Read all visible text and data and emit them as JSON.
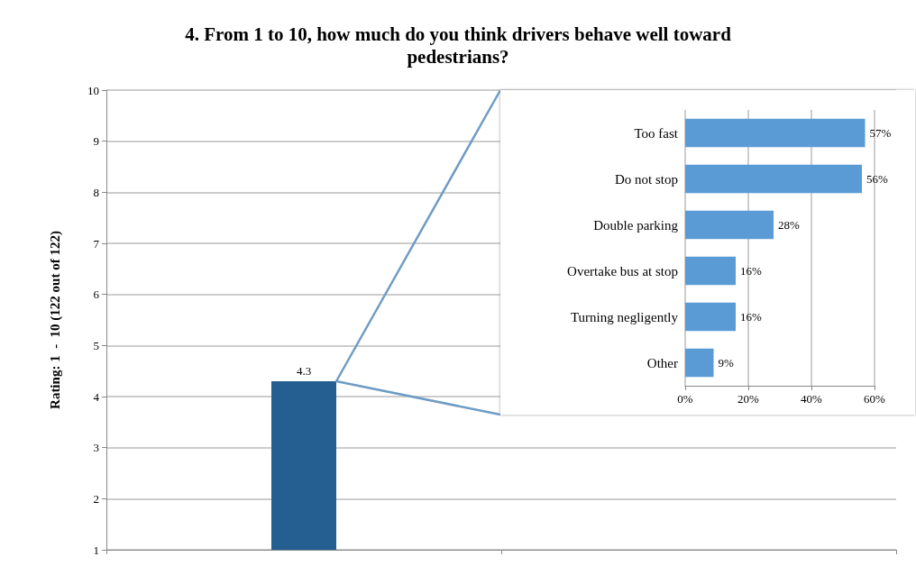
{
  "chart_data": [
    {
      "type": "bar",
      "title": "4. From 1 to 10, how much do you think drivers behave well toward pedestrians?",
      "ylabel": "Rating: 1  -  10 (122 out of 122)",
      "categories": [
        null,
        null
      ],
      "values": [
        4.3,
        null
      ],
      "color": "#255e91",
      "data_labels": true,
      "ylim": [
        1,
        10
      ],
      "yticks": [
        1,
        2,
        3,
        4,
        5,
        6,
        7,
        8,
        9,
        10
      ],
      "grid": "y"
    },
    {
      "type": "bar",
      "orientation": "horizontal",
      "categories": [
        "Too fast",
        "Do not stop",
        "Double parking",
        "Overtake bus at stop",
        "Turning negligently",
        "Other"
      ],
      "values": [
        57,
        56,
        28,
        16,
        16,
        9
      ],
      "value_labels": [
        "57%",
        "56%",
        "28%",
        "16%",
        "16%",
        "9%"
      ],
      "color": "#5b9bd5",
      "xlim": [
        0,
        60
      ],
      "xticks": [
        {
          "value": 0,
          "label": "0%"
        },
        {
          "value": 20,
          "label": "20%"
        },
        {
          "value": 40,
          "label": "40%"
        },
        {
          "value": 60,
          "label": "60%"
        }
      ],
      "grid": "x"
    }
  ]
}
